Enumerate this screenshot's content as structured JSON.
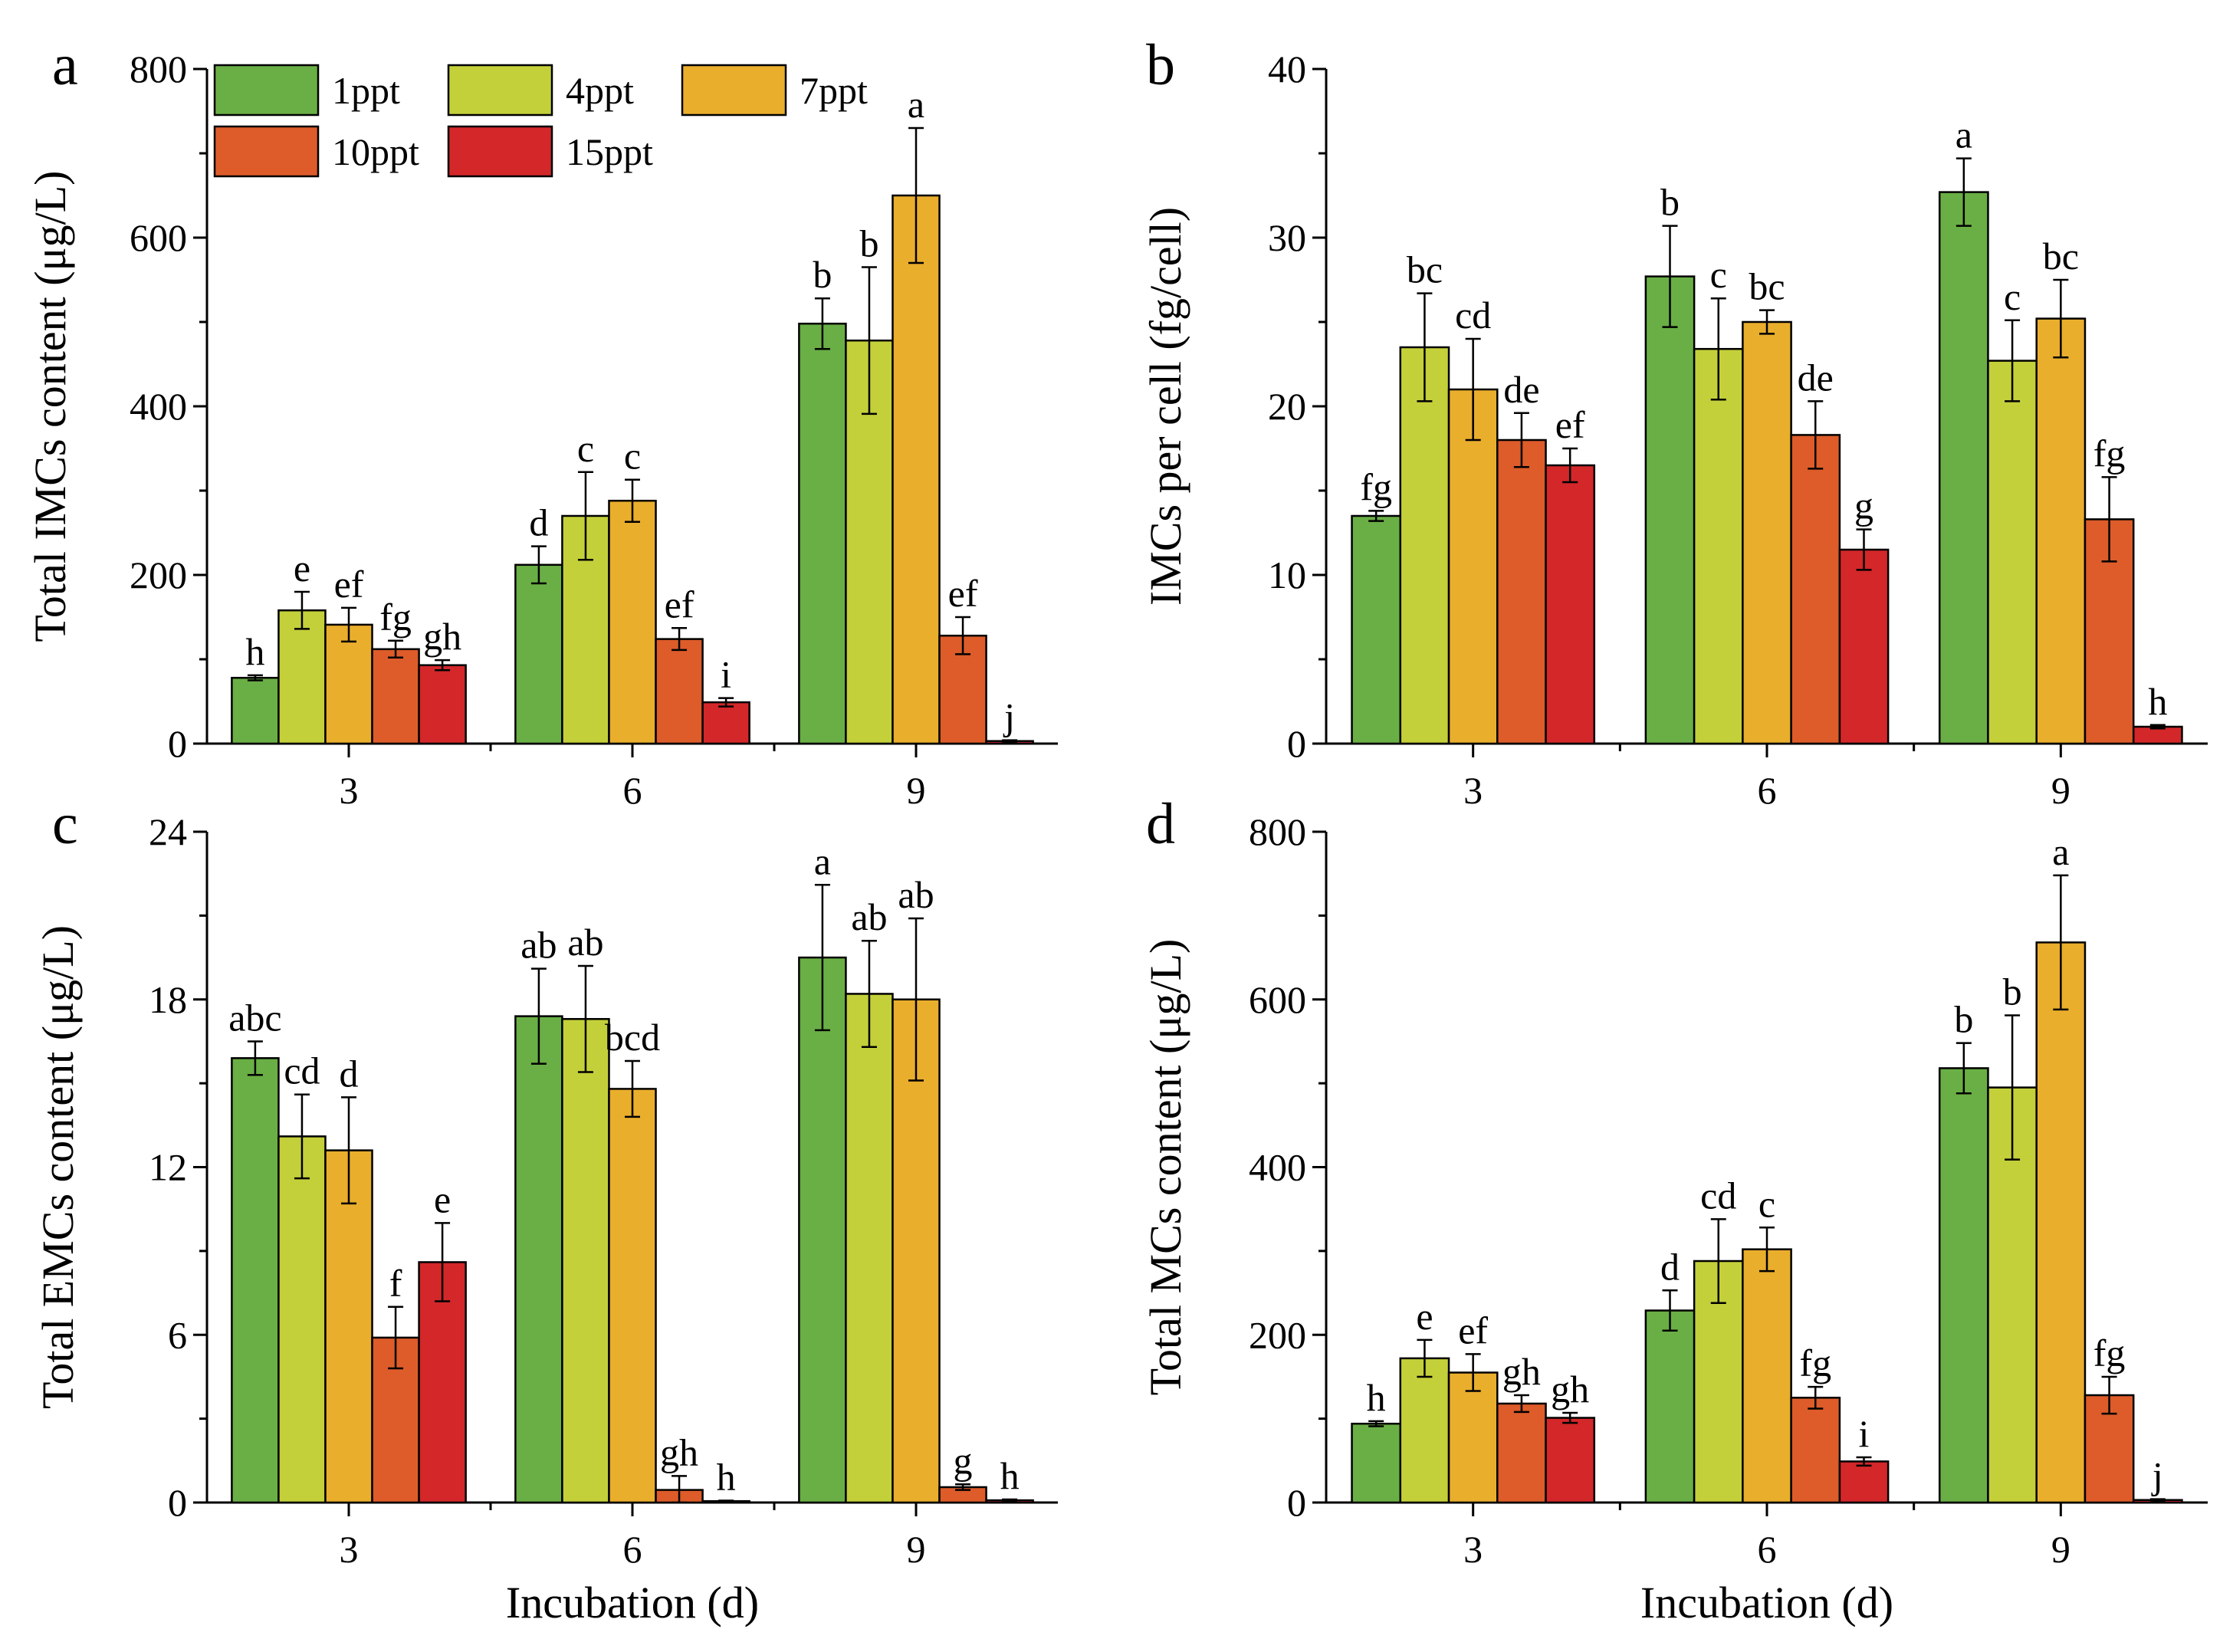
{
  "legend": [
    {
      "name": "1ppt",
      "color": "#6aaf45"
    },
    {
      "name": "4ppt",
      "color": "#c4d03a"
    },
    {
      "name": "7ppt",
      "color": "#eaae2d"
    },
    {
      "name": "10ppt",
      "color": "#dd5c2a"
    },
    {
      "name": "15ppt",
      "color": "#d3272a"
    }
  ],
  "chart_data": [
    {
      "panel": "a",
      "type": "bar",
      "title": "",
      "xlabel": "Incubation (d)",
      "ylabel": "Total IMCs content (μg/L)",
      "categories": [
        "3",
        "6",
        "9"
      ],
      "ylim": [
        0,
        800
      ],
      "yticks": [
        0,
        200,
        400,
        600,
        800
      ],
      "series": [
        {
          "name": "1ppt",
          "values": [
            78,
            212,
            498
          ],
          "errors": [
            3,
            22,
            30
          ],
          "labels": [
            "h",
            "d",
            "b"
          ]
        },
        {
          "name": "4ppt",
          "values": [
            158,
            270,
            478
          ],
          "errors": [
            22,
            52,
            87
          ],
          "labels": [
            "e",
            "c",
            "b"
          ]
        },
        {
          "name": "7ppt",
          "values": [
            141,
            288,
            650
          ],
          "errors": [
            20,
            25,
            80
          ],
          "labels": [
            "ef",
            "c",
            "a"
          ]
        },
        {
          "name": "10ppt",
          "values": [
            112,
            124,
            128
          ],
          "errors": [
            10,
            13,
            22
          ],
          "labels": [
            "fg",
            "ef",
            "ef"
          ]
        },
        {
          "name": "15ppt",
          "values": [
            93,
            49,
            3
          ],
          "errors": [
            6,
            5,
            1
          ],
          "labels": [
            "gh",
            "i",
            "j"
          ]
        }
      ]
    },
    {
      "panel": "b",
      "type": "bar",
      "title": "",
      "xlabel": "",
      "ylabel": "IMCs per cell (fg/cell)",
      "categories": [
        "3",
        "6",
        "9"
      ],
      "ylim": [
        0,
        40
      ],
      "yticks": [
        0,
        10,
        20,
        30,
        40
      ],
      "series": [
        {
          "name": "1ppt",
          "values": [
            13.5,
            27.7,
            32.7
          ],
          "errors": [
            0.3,
            3.0,
            2.0
          ],
          "labels": [
            "fg",
            "b",
            "a"
          ]
        },
        {
          "name": "4ppt",
          "values": [
            23.5,
            23.4,
            22.7
          ],
          "errors": [
            3.2,
            3.0,
            2.4
          ],
          "labels": [
            "bc",
            "c",
            "c"
          ]
        },
        {
          "name": "7ppt",
          "values": [
            21.0,
            25.0,
            25.2
          ],
          "errors": [
            3.0,
            0.7,
            2.3
          ],
          "labels": [
            "cd",
            "bc",
            "bc"
          ]
        },
        {
          "name": "10ppt",
          "values": [
            18.0,
            18.3,
            13.3
          ],
          "errors": [
            1.6,
            2.0,
            2.5
          ],
          "labels": [
            "de",
            "de",
            "fg"
          ]
        },
        {
          "name": "15ppt",
          "values": [
            16.5,
            11.5,
            1.0
          ],
          "errors": [
            1.0,
            1.2,
            0.1
          ],
          "labels": [
            "ef",
            "g",
            "h"
          ]
        }
      ]
    },
    {
      "panel": "c",
      "type": "bar",
      "title": "",
      "xlabel": "Incubation (d)",
      "ylabel": "Total EMCs content (μg/L)",
      "categories": [
        "3",
        "6",
        "9"
      ],
      "ylim": [
        0,
        24
      ],
      "yticks": [
        0,
        6,
        12,
        18,
        24
      ],
      "series": [
        {
          "name": "1ppt",
          "values": [
            15.9,
            17.4,
            19.5
          ],
          "errors": [
            0.6,
            1.7,
            2.6
          ],
          "labels": [
            "abc",
            "ab",
            "a"
          ]
        },
        {
          "name": "4ppt",
          "values": [
            13.1,
            17.3,
            18.2
          ],
          "errors": [
            1.5,
            1.9,
            1.9
          ],
          "labels": [
            "cd",
            "ab",
            "ab"
          ]
        },
        {
          "name": "7ppt",
          "values": [
            12.6,
            14.8,
            18.0
          ],
          "errors": [
            1.9,
            1.0,
            2.9
          ],
          "labels": [
            "d",
            "bcd",
            "ab"
          ]
        },
        {
          "name": "10ppt",
          "values": [
            5.9,
            0.45,
            0.55
          ],
          "errors": [
            1.1,
            0.5,
            0.1
          ],
          "labels": [
            "f",
            "gh",
            "g"
          ]
        },
        {
          "name": "15ppt",
          "values": [
            8.6,
            0.05,
            0.08
          ],
          "errors": [
            1.4,
            0.02,
            0.03
          ],
          "labels": [
            "e",
            "h",
            "h"
          ]
        }
      ]
    },
    {
      "panel": "d",
      "type": "bar",
      "title": "",
      "xlabel": "Incubation (d)",
      "ylabel": "Total MCs content (μg/L)",
      "categories": [
        "3",
        "6",
        "9"
      ],
      "ylim": [
        0,
        800
      ],
      "yticks": [
        0,
        200,
        400,
        600,
        800
      ],
      "series": [
        {
          "name": "1ppt",
          "values": [
            94,
            229,
            518
          ],
          "errors": [
            3,
            24,
            30
          ],
          "labels": [
            "h",
            "d",
            "b"
          ]
        },
        {
          "name": "4ppt",
          "values": [
            172,
            288,
            495
          ],
          "errors": [
            22,
            50,
            86
          ],
          "labels": [
            "e",
            "cd",
            "b"
          ]
        },
        {
          "name": "7ppt",
          "values": [
            155,
            302,
            668
          ],
          "errors": [
            22,
            26,
            80
          ],
          "labels": [
            "ef",
            "c",
            "a"
          ]
        },
        {
          "name": "10ppt",
          "values": [
            118,
            125,
            128
          ],
          "errors": [
            10,
            13,
            22
          ],
          "labels": [
            "gh",
            "fg",
            "fg"
          ]
        },
        {
          "name": "15ppt",
          "values": [
            101,
            49,
            3
          ],
          "errors": [
            6,
            5,
            1
          ],
          "labels": [
            "gh",
            "i",
            "j"
          ]
        }
      ]
    }
  ]
}
